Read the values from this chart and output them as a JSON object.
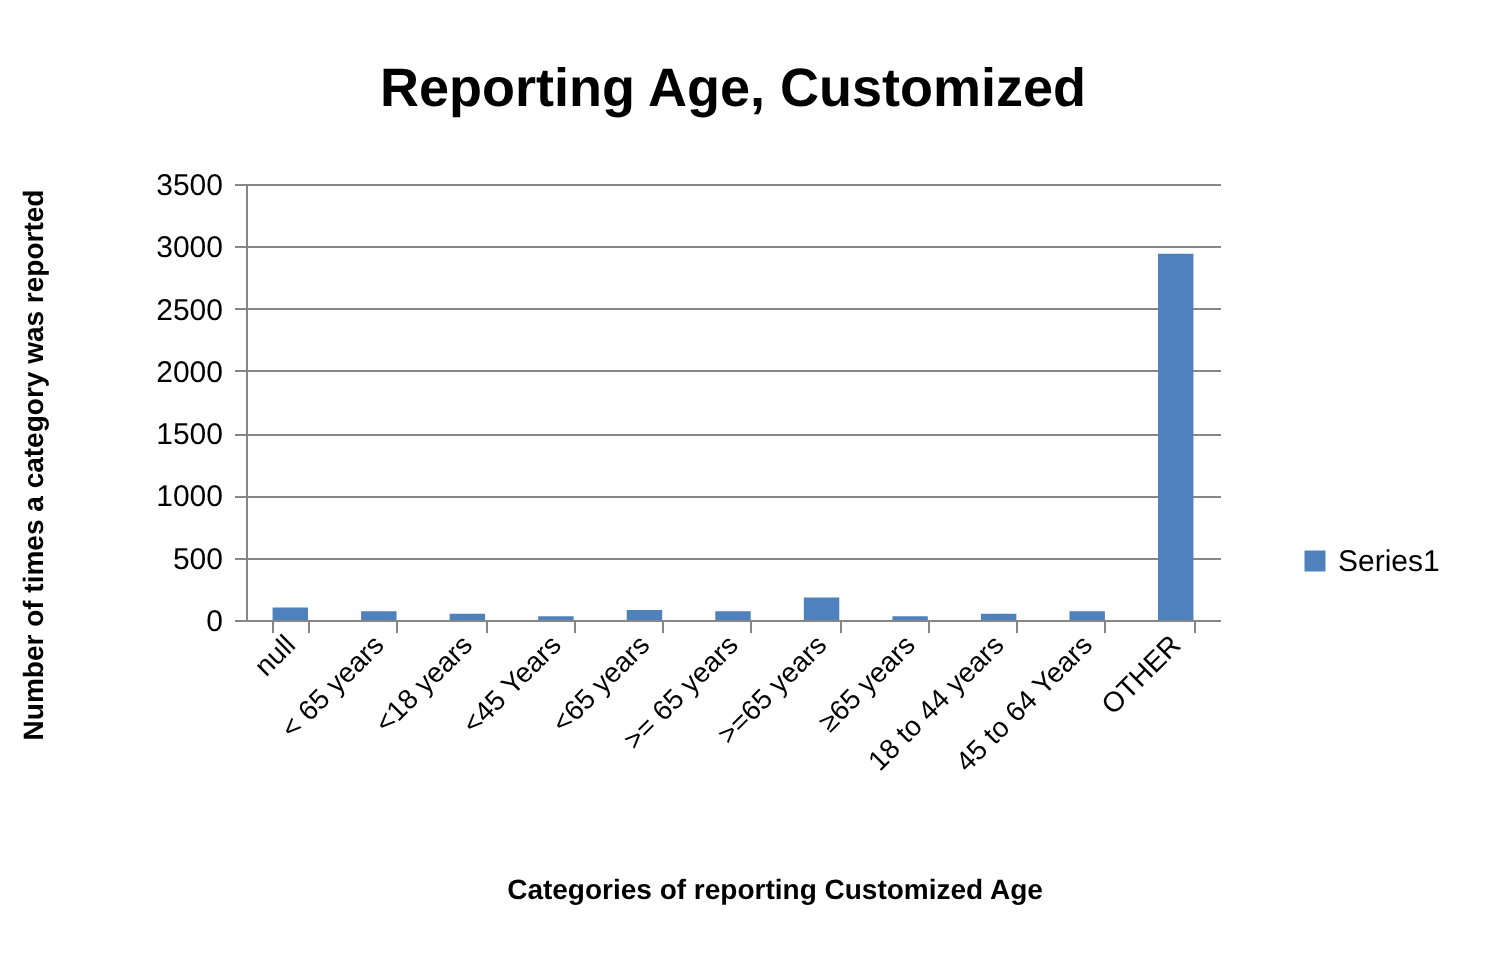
{
  "chart_data": {
    "type": "bar",
    "title": "Reporting Age, Customized",
    "xlabel": "Categories of reporting Customized Age",
    "ylabel": "Number of times a category was reported",
    "categories": [
      "null",
      "< 65 years",
      "<18 years",
      "<45 Years",
      "<65 years",
      ">= 65 years",
      ">=65 years",
      "≥65 years",
      "18 to 44 years",
      "45 to 64 Years",
      "OTHER"
    ],
    "series": [
      {
        "name": "Series1",
        "color": "#4f81bd",
        "values": [
          100,
          70,
          50,
          30,
          80,
          70,
          180,
          30,
          50,
          70,
          2940
        ]
      }
    ],
    "ylim": [
      0,
      3500
    ],
    "yticks": [
      0,
      500,
      1000,
      1500,
      2000,
      2500,
      3000,
      3500
    ],
    "grid": "y",
    "legend": "right"
  }
}
